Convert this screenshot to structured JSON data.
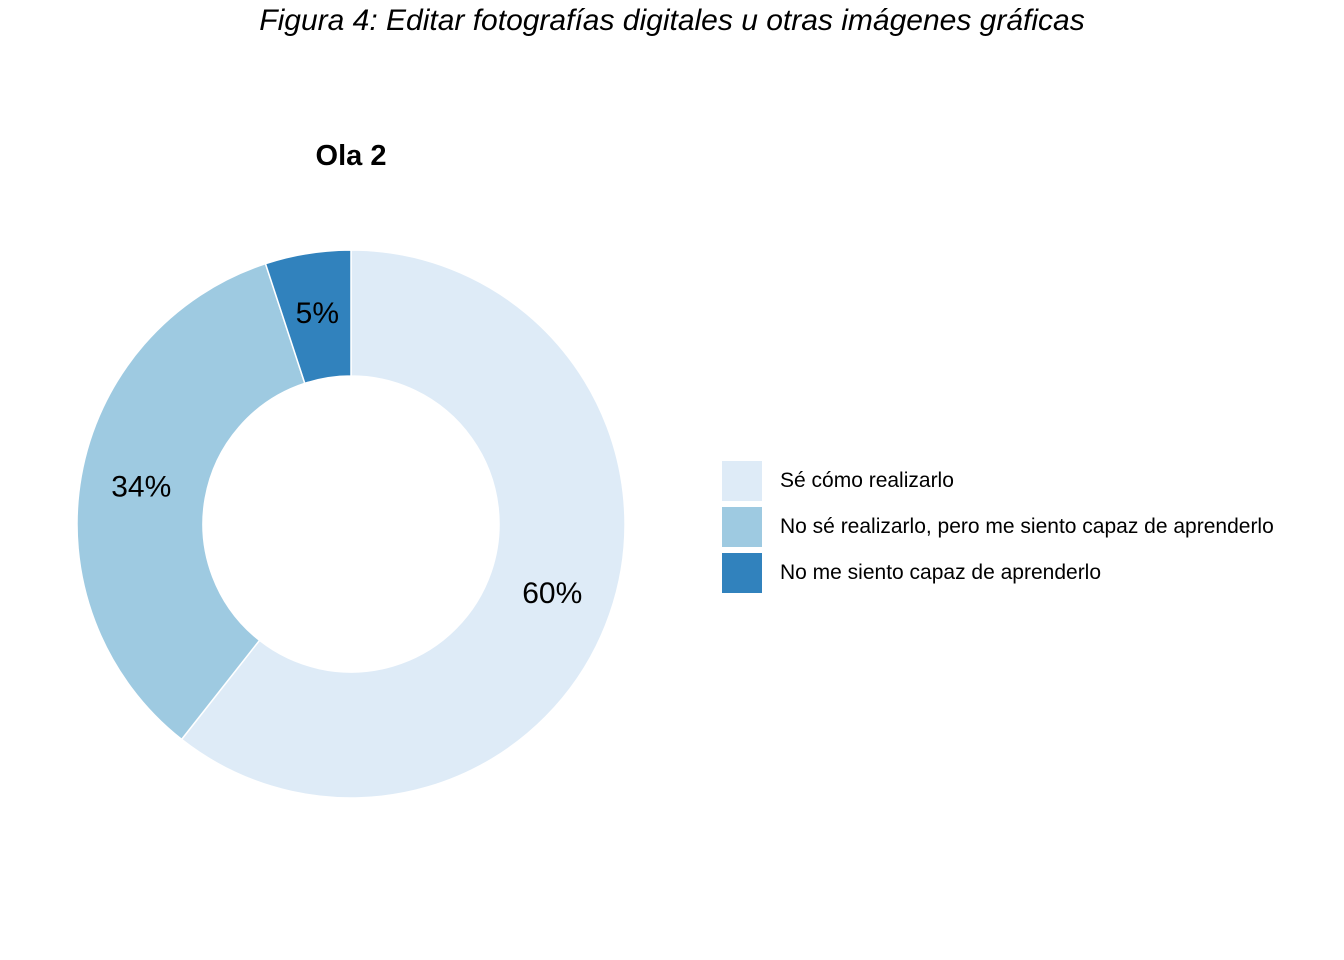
{
  "title": "Figura 4: Editar fotografías digitales u otras imágenes gráficas",
  "chart_data": {
    "type": "pie",
    "subtitle": "Ola 2",
    "categories": [
      "Sé cómo realizarlo",
      "No sé realizarlo, pero me siento capaz de aprenderlo",
      "No me siento capaz de aprenderlo"
    ],
    "values": [
      60,
      34,
      5
    ],
    "labels": [
      "60%",
      "34%",
      "5%"
    ],
    "colors": [
      "#deebf7",
      "#9ecae1",
      "#3182bd"
    ],
    "donut": true,
    "legend_position": "right"
  }
}
